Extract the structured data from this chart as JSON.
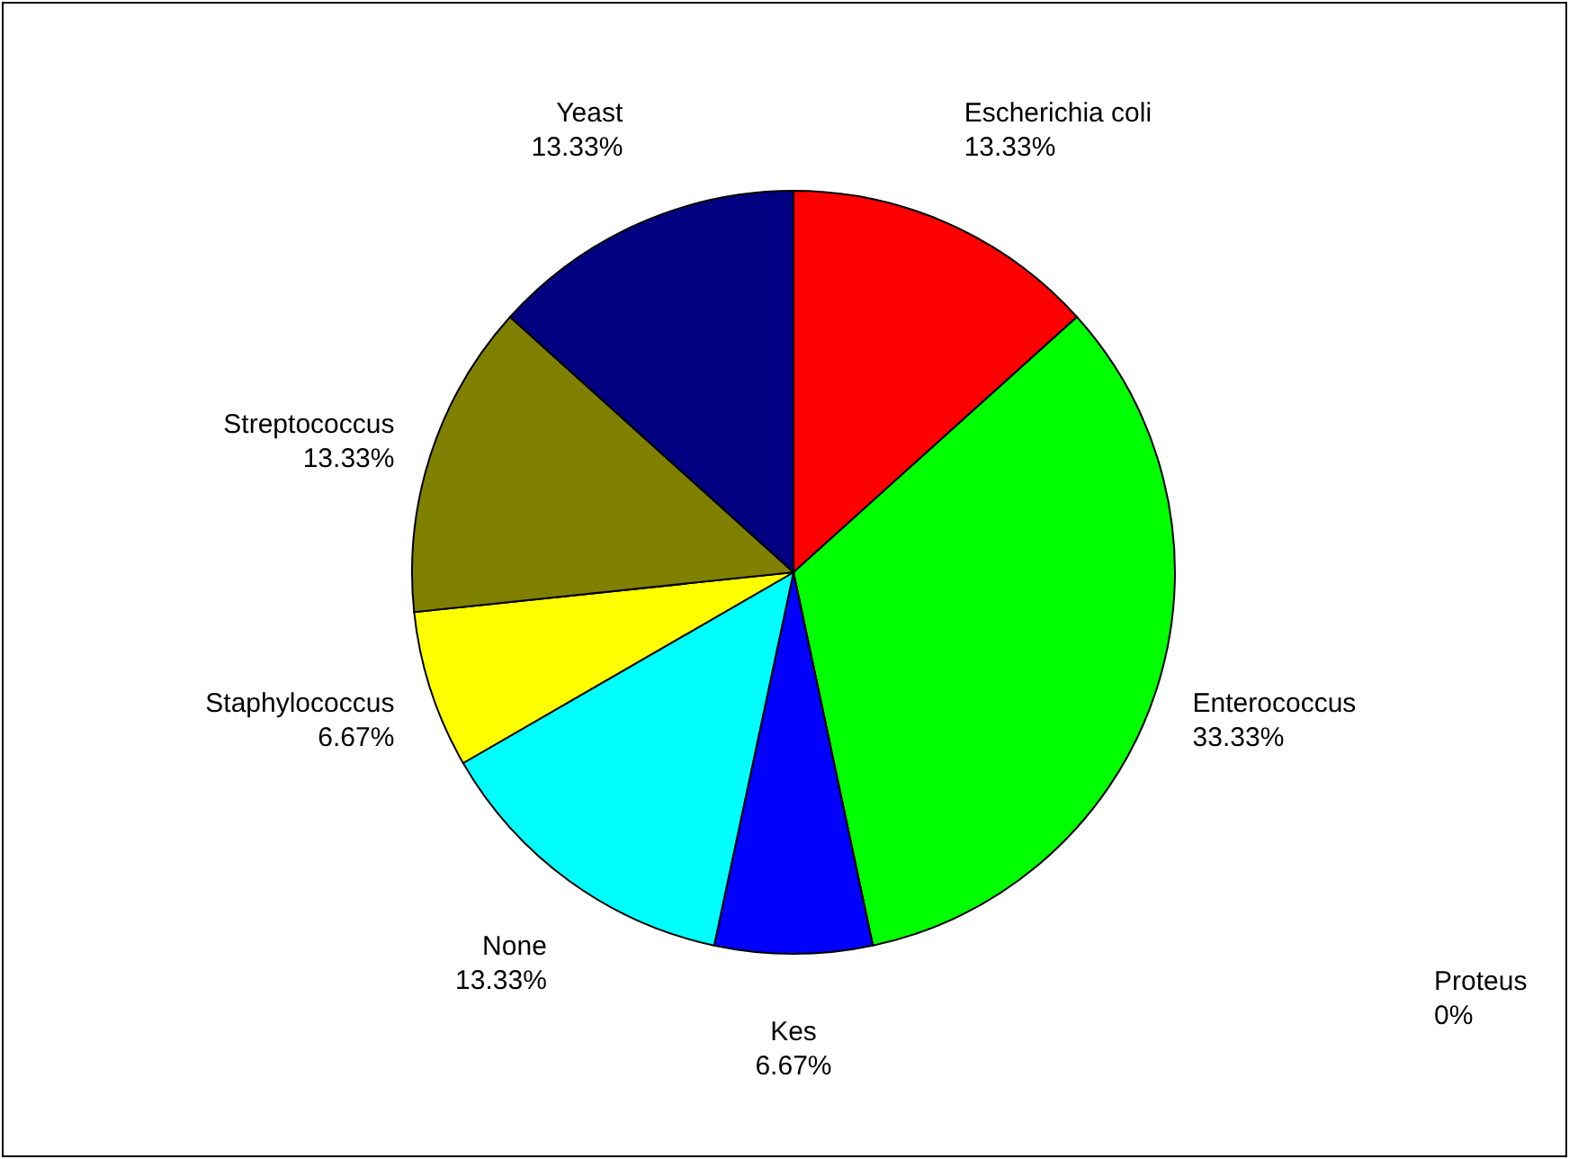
{
  "chart_data": {
    "type": "pie",
    "categories": [
      "Escherichia coli",
      "Enterococcus",
      "Proteus",
      "Kes",
      "None",
      "Staphylococcus",
      "Streptococcus",
      "Yeast"
    ],
    "values": [
      13.33,
      33.33,
      0,
      6.67,
      13.33,
      6.67,
      13.33,
      13.33
    ],
    "value_labels": [
      "13.33%",
      "33.33%",
      "0%",
      "6.67%",
      "13.33%",
      "6.67%",
      "13.33%",
      "13.33%"
    ],
    "colors": [
      "#ff0000",
      "#00ff00",
      null,
      "#0000ff",
      "#00ffff",
      "#ffff00",
      "#808000",
      "#000080"
    ]
  }
}
